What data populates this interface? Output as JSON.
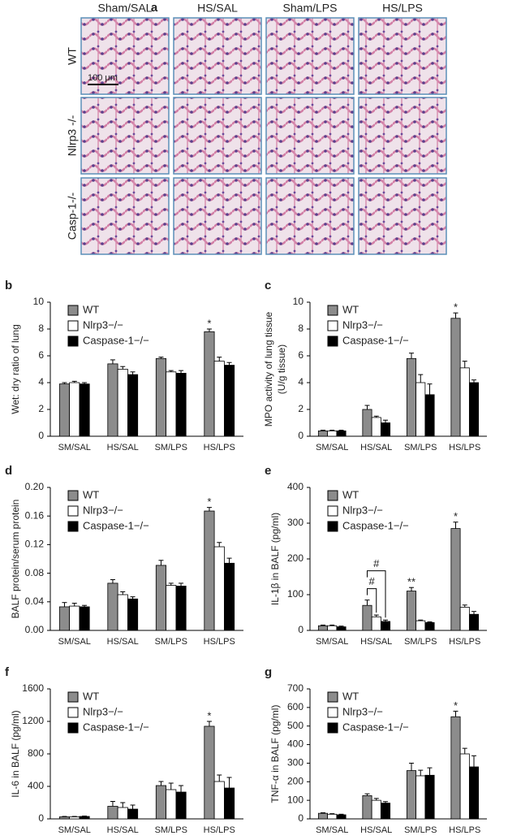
{
  "figure": {
    "panel_label": "a",
    "columns": [
      "Sham/SAL",
      "HS/SAL",
      "Sham/LPS",
      "HS/LPS"
    ],
    "rows": [
      "WT",
      "Nlrp3 -/-",
      "Casp-1-/-"
    ],
    "scale_bar": "100 μm"
  },
  "chart_data": [
    {
      "type": "bar",
      "panel": "b",
      "ylabel": [
        "Wet: dry ratio of lung"
      ],
      "categories": [
        "SM/SAL",
        "HS/SAL",
        "SM/LPS",
        "HS/LPS"
      ],
      "series": [
        {
          "name": "WT",
          "color": "#8c8c8c",
          "values": [
            3.9,
            5.4,
            5.8,
            7.8
          ],
          "errors": [
            0.1,
            0.3,
            0.1,
            0.2
          ]
        },
        {
          "name": "Nlrp3−/−",
          "color": "#ffffff",
          "values": [
            4.0,
            5.0,
            4.8,
            5.6
          ],
          "errors": [
            0.1,
            0.2,
            0.1,
            0.3
          ]
        },
        {
          "name": "Caspase-1−/−",
          "color": "#000000",
          "values": [
            3.9,
            4.6,
            4.7,
            5.3
          ],
          "errors": [
            0.1,
            0.2,
            0.2,
            0.2
          ]
        }
      ],
      "ylim": [
        0,
        10
      ],
      "yticks": [
        0,
        2,
        4,
        6,
        8,
        10
      ],
      "annotations": [
        {
          "text": "*",
          "series": 0,
          "index": 3
        }
      ]
    },
    {
      "type": "bar",
      "panel": "c",
      "ylabel": [
        "MPO activity of lung tissue",
        "(U/g tissue)"
      ],
      "categories": [
        "SM/SAL",
        "HS/SAL",
        "SM/LPS",
        "HS/LPS"
      ],
      "series": [
        {
          "name": "WT",
          "color": "#8c8c8c",
          "values": [
            0.4,
            2.0,
            5.8,
            8.8
          ],
          "errors": [
            0.05,
            0.3,
            0.4,
            0.4
          ]
        },
        {
          "name": "Nlrp3−/−",
          "color": "#ffffff",
          "values": [
            0.4,
            1.4,
            4.0,
            5.1
          ],
          "errors": [
            0.05,
            0.1,
            0.6,
            0.5
          ]
        },
        {
          "name": "Caspase-1−/−",
          "color": "#000000",
          "values": [
            0.4,
            1.0,
            3.1,
            4.0
          ],
          "errors": [
            0.05,
            0.2,
            0.8,
            0.2
          ]
        }
      ],
      "ylim": [
        0,
        10
      ],
      "yticks": [
        0,
        2,
        4,
        6,
        8,
        10
      ],
      "annotations": [
        {
          "text": "*",
          "series": 0,
          "index": 3
        }
      ]
    },
    {
      "type": "bar",
      "panel": "d",
      "ylabel": [
        "BALF protein/serum protein"
      ],
      "categories": [
        "SM/SAL",
        "HS/SAL",
        "SM/LPS",
        "HS/LPS"
      ],
      "series": [
        {
          "name": "WT",
          "color": "#8c8c8c",
          "values": [
            0.033,
            0.066,
            0.091,
            0.167
          ],
          "errors": [
            0.006,
            0.005,
            0.007,
            0.005
          ]
        },
        {
          "name": "Nlrp3−/−",
          "color": "#ffffff",
          "values": [
            0.034,
            0.05,
            0.063,
            0.117
          ],
          "errors": [
            0.004,
            0.004,
            0.003,
            0.006
          ]
        },
        {
          "name": "Caspase-1−/−",
          "color": "#000000",
          "values": [
            0.033,
            0.044,
            0.062,
            0.094
          ],
          "errors": [
            0.002,
            0.003,
            0.004,
            0.007
          ]
        }
      ],
      "ylim": [
        0,
        0.2
      ],
      "yticks": [
        {
          "value": 0,
          "label": "0.00"
        },
        {
          "value": 0.04,
          "label": "0.04"
        },
        {
          "value": 0.08,
          "label": "0.08"
        },
        {
          "value": 0.12,
          "label": "0.12"
        },
        {
          "value": 0.16,
          "label": "0.16"
        },
        {
          "value": 0.2,
          "label": "0.20"
        }
      ],
      "annotations": [
        {
          "text": "*",
          "series": 0,
          "index": 3
        }
      ]
    },
    {
      "type": "bar",
      "panel": "e",
      "ylabel": [
        "IL-1β in BALF (pg/ml)"
      ],
      "categories": [
        "SM/SAL",
        "HS/SAL",
        "SM/LPS",
        "HS/LPS"
      ],
      "series": [
        {
          "name": "WT",
          "color": "#8c8c8c",
          "values": [
            13,
            70,
            110,
            285
          ],
          "errors": [
            2,
            15,
            10,
            18
          ]
        },
        {
          "name": "Nlrp3−/−",
          "color": "#ffffff",
          "values": [
            13,
            38,
            27,
            65
          ],
          "errors": [
            2,
            5,
            2,
            6
          ]
        },
        {
          "name": "Caspase-1−/−",
          "color": "#000000",
          "values": [
            10,
            25,
            22,
            45
          ],
          "errors": [
            2,
            4,
            2,
            8
          ]
        }
      ],
      "ylim": [
        0,
        400
      ],
      "yticks": [
        0,
        100,
        200,
        300,
        400
      ],
      "annotations": [
        {
          "text": "#",
          "series": 2,
          "index": 1
        },
        {
          "text": "#",
          "series": 1,
          "index": 1
        },
        {
          "text": "**",
          "series": 0,
          "index": 2
        },
        {
          "text": "*",
          "series": 0,
          "index": 3
        }
      ]
    },
    {
      "type": "bar",
      "panel": "f",
      "ylabel": [
        "IL-6 in BALF (pg/ml)"
      ],
      "categories": [
        "SM/SAL",
        "HS/SAL",
        "SM/LPS",
        "HS/LPS"
      ],
      "series": [
        {
          "name": "WT",
          "color": "#8c8c8c",
          "values": [
            25,
            155,
            410,
            1140
          ],
          "errors": [
            5,
            60,
            50,
            60
          ]
        },
        {
          "name": "Nlrp3−/−",
          "color": "#ffffff",
          "values": [
            25,
            140,
            360,
            460
          ],
          "errors": [
            5,
            60,
            80,
            80
          ]
        },
        {
          "name": "Caspase-1−/−",
          "color": "#000000",
          "values": [
            30,
            120,
            330,
            380
          ],
          "errors": [
            5,
            50,
            80,
            130
          ]
        }
      ],
      "ylim": [
        0,
        1600
      ],
      "yticks": [
        0,
        400,
        800,
        1200,
        1600
      ],
      "annotations": [
        {
          "text": "*",
          "series": 0,
          "index": 3
        }
      ]
    },
    {
      "type": "bar",
      "panel": "g",
      "ylabel": [
        "TNF-α in BALF (pg/ml)"
      ],
      "categories": [
        "SM/SAL",
        "HS/SAL",
        "SM/LPS",
        "HS/LPS"
      ],
      "series": [
        {
          "name": "WT",
          "color": "#8c8c8c",
          "values": [
            30,
            125,
            260,
            550
          ],
          "errors": [
            3,
            10,
            40,
            30
          ]
        },
        {
          "name": "Nlrp3−/−",
          "color": "#ffffff",
          "values": [
            25,
            100,
            232,
            350
          ],
          "errors": [
            3,
            10,
            30,
            30
          ]
        },
        {
          "name": "Caspase-1−/−",
          "color": "#000000",
          "values": [
            22,
            85,
            235,
            280
          ],
          "errors": [
            3,
            8,
            40,
            60
          ]
        }
      ],
      "ylim": [
        0,
        700
      ],
      "yticks": [
        0,
        100,
        200,
        300,
        400,
        500,
        600,
        700
      ],
      "annotations": [
        {
          "text": "*",
          "series": 0,
          "index": 3
        }
      ]
    }
  ]
}
